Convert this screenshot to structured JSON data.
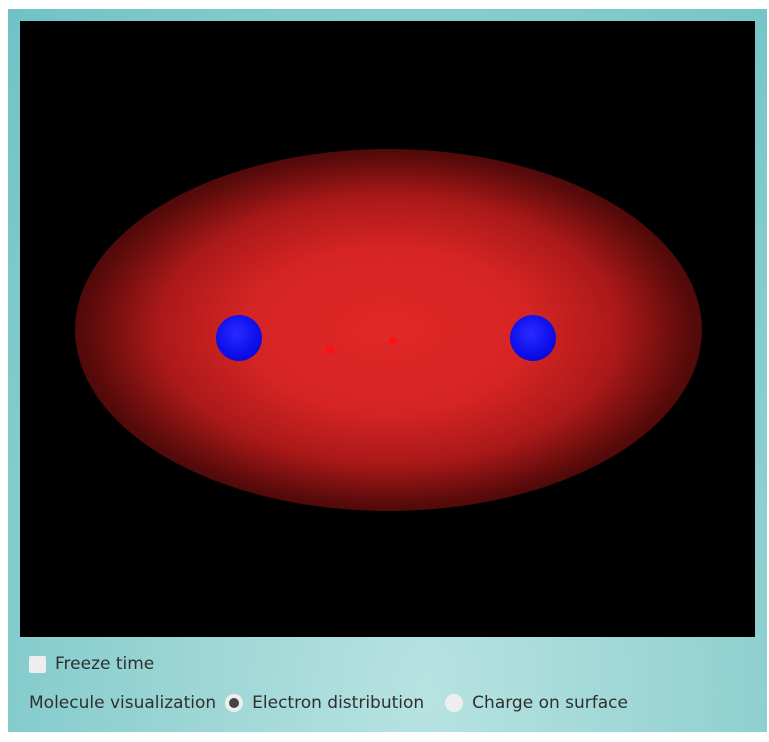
{
  "simulation": {
    "background_color": "#000000",
    "cloud_color": "#e02828",
    "nucleus_color": "#1111ee",
    "electron_color": "#ff1010"
  },
  "controls": {
    "freeze_time": {
      "label": "Freeze time",
      "checked": false
    },
    "molecule_visualization": {
      "label": "Molecule visualization",
      "options": [
        {
          "label": "Electron distribution",
          "selected": true
        },
        {
          "label": "Charge on surface",
          "selected": false
        }
      ]
    }
  }
}
